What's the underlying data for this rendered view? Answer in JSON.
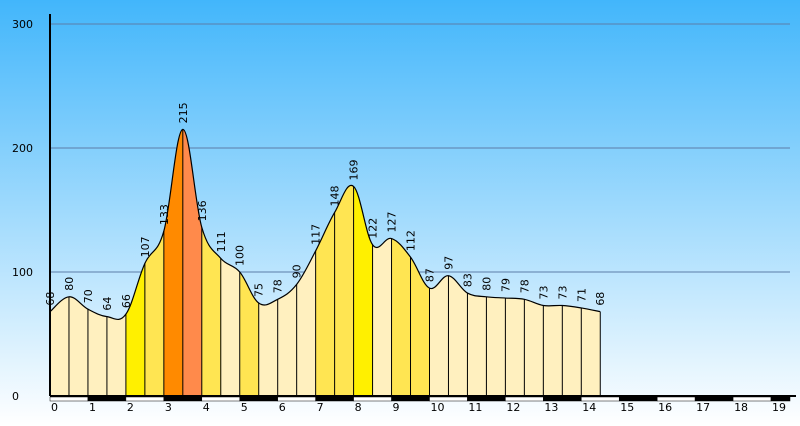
{
  "chart_data": {
    "type": "area",
    "title": "",
    "xlabel": "",
    "ylabel": "",
    "ylim": [
      0,
      300
    ],
    "xlim": [
      0,
      19.5
    ],
    "grid": true,
    "y_ticks": [
      "0",
      "100",
      "200",
      "300"
    ],
    "x_ticks": [
      "0",
      "1",
      "2",
      "3",
      "4",
      "5",
      "6",
      "7",
      "8",
      "9",
      "10",
      "11",
      "12",
      "13",
      "14",
      "15",
      "16",
      "17",
      "18",
      "19"
    ],
    "points": [
      {
        "x": 0.0,
        "y": 68
      },
      {
        "x": 0.5,
        "y": 80
      },
      {
        "x": 1.0,
        "y": 70
      },
      {
        "x": 1.5,
        "y": 64
      },
      {
        "x": 2.0,
        "y": 66
      },
      {
        "x": 2.5,
        "y": 107
      },
      {
        "x": 3.0,
        "y": 133
      },
      {
        "x": 3.5,
        "y": 215
      },
      {
        "x": 4.0,
        "y": 136
      },
      {
        "x": 4.5,
        "y": 111
      },
      {
        "x": 5.0,
        "y": 100
      },
      {
        "x": 5.5,
        "y": 75
      },
      {
        "x": 6.0,
        "y": 78
      },
      {
        "x": 6.5,
        "y": 90
      },
      {
        "x": 7.0,
        "y": 117
      },
      {
        "x": 7.5,
        "y": 148
      },
      {
        "x": 8.0,
        "y": 169
      },
      {
        "x": 8.5,
        "y": 122
      },
      {
        "x": 9.0,
        "y": 127
      },
      {
        "x": 9.5,
        "y": 112
      },
      {
        "x": 10.0,
        "y": 87
      },
      {
        "x": 10.5,
        "y": 97
      },
      {
        "x": 11.0,
        "y": 83
      },
      {
        "x": 11.5,
        "y": 80
      },
      {
        "x": 12.0,
        "y": 79
      },
      {
        "x": 12.5,
        "y": 78
      },
      {
        "x": 13.0,
        "y": 73
      },
      {
        "x": 13.5,
        "y": 73
      },
      {
        "x": 14.0,
        "y": 71
      },
      {
        "x": 14.5,
        "y": 68
      }
    ],
    "segment_colors": [
      "#fff0bf",
      "#fff0bf",
      "#fff0bf",
      "#fff0bf",
      "#fff000",
      "#ffe552",
      "#ff8a00",
      "#ff8a4b",
      "#ffe552",
      "#fff0bf",
      "#ffe552",
      "#fff0bf",
      "#fff0bf",
      "#fff0bf",
      "#ffe552",
      "#ffe552",
      "#fff000",
      "#fff0bf",
      "#ffe552",
      "#ffe552",
      "#fff0bf",
      "#fff0bf",
      "#fff0bf",
      "#fff0bf",
      "#fff0bf",
      "#fff0bf",
      "#fff0bf",
      "#fff0bf",
      "#fff0bf"
    ],
    "colors": {
      "sky_top": "#42b6fb",
      "sky_bottom": "#ffffff",
      "grid": "#5c7da8",
      "outline": "#000000",
      "axis_bar_dark": "#000000",
      "axis_bar_light": "#ffffff"
    }
  }
}
